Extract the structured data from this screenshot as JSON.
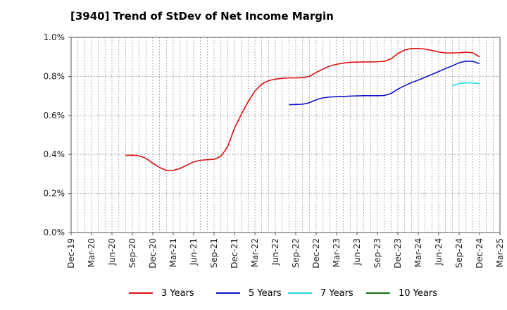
{
  "chart_data": {
    "type": "line",
    "title": "[3940]  Trend of StDev of Net Income Margin",
    "xlabel": "",
    "ylabel": "",
    "ylim": [
      0,
      1.0
    ],
    "y_ticks": [
      "0.0%",
      "0.2%",
      "0.4%",
      "0.6%",
      "0.8%",
      "1.0%"
    ],
    "x_ticks": [
      "Dec-19",
      "Mar-20",
      "Jun-20",
      "Sep-20",
      "Dec-20",
      "Mar-21",
      "Jun-21",
      "Sep-21",
      "Dec-21",
      "Mar-22",
      "Jun-22",
      "Sep-22",
      "Dec-22",
      "Mar-23",
      "Jun-23",
      "Sep-23",
      "Dec-23",
      "Mar-24",
      "Jun-24",
      "Sep-24",
      "Dec-24",
      "Mar-25"
    ],
    "x_start": "Dec-19",
    "x_end": "Mar-25",
    "grid": true,
    "legend_position": "bottom",
    "series": [
      {
        "name": "3 Years",
        "color": "#dd1111",
        "x": [
          "Aug-20",
          "Sep-20",
          "Oct-20",
          "Nov-20",
          "Dec-20",
          "Jan-21",
          "Feb-21",
          "Mar-21",
          "Apr-21",
          "May-21",
          "Jun-21",
          "Jul-21",
          "Aug-21",
          "Sep-21",
          "Oct-21",
          "Nov-21",
          "Dec-21",
          "Jan-22",
          "Feb-22",
          "Mar-22",
          "Apr-22",
          "May-22",
          "Jun-22",
          "Jul-22",
          "Aug-22",
          "Sep-22",
          "Oct-22",
          "Nov-22",
          "Dec-22",
          "Jan-23",
          "Feb-23",
          "Mar-23",
          "Apr-23",
          "May-23",
          "Jun-23",
          "Jul-23",
          "Aug-23",
          "Sep-23",
          "Oct-23",
          "Nov-23",
          "Dec-23",
          "Jan-24",
          "Feb-24",
          "Mar-24",
          "Apr-24",
          "May-24",
          "Jun-24",
          "Jul-24",
          "Aug-24",
          "Sep-24",
          "Oct-24",
          "Nov-24",
          "Dec-24"
        ],
        "values": [
          0.395,
          0.396,
          0.393,
          0.38,
          0.355,
          0.333,
          0.318,
          0.318,
          0.328,
          0.345,
          0.362,
          0.37,
          0.373,
          0.375,
          0.39,
          0.44,
          0.535,
          0.605,
          0.67,
          0.725,
          0.76,
          0.778,
          0.786,
          0.79,
          0.792,
          0.792,
          0.793,
          0.8,
          0.82,
          0.838,
          0.853,
          0.862,
          0.868,
          0.872,
          0.873,
          0.874,
          0.874,
          0.875,
          0.877,
          0.89,
          0.917,
          0.935,
          0.943,
          0.943,
          0.94,
          0.933,
          0.925,
          0.92,
          0.92,
          0.921,
          0.924,
          0.921,
          0.9
        ]
      },
      {
        "name": "5 Years",
        "color": "#1111cc",
        "x": [
          "Aug-22",
          "Sep-22",
          "Oct-22",
          "Nov-22",
          "Dec-22",
          "Jan-23",
          "Feb-23",
          "Mar-23",
          "Apr-23",
          "May-23",
          "Jun-23",
          "Jul-23",
          "Aug-23",
          "Sep-23",
          "Oct-23",
          "Nov-23",
          "Dec-23",
          "Jan-24",
          "Feb-24",
          "Mar-24",
          "Apr-24",
          "May-24",
          "Jun-24",
          "Jul-24",
          "Aug-24",
          "Sep-24",
          "Oct-24",
          "Nov-24",
          "Dec-24"
        ],
        "values": [
          0.655,
          0.656,
          0.657,
          0.665,
          0.68,
          0.69,
          0.694,
          0.696,
          0.697,
          0.699,
          0.7,
          0.701,
          0.701,
          0.701,
          0.702,
          0.712,
          0.735,
          0.752,
          0.768,
          0.781,
          0.795,
          0.81,
          0.825,
          0.84,
          0.854,
          0.87,
          0.878,
          0.877,
          0.865
        ]
      },
      {
        "name": "7 Years",
        "color": "#22dddd",
        "x": [
          "Aug-24",
          "Sep-24",
          "Oct-24",
          "Nov-24",
          "Dec-24"
        ],
        "values": [
          0.752,
          0.763,
          0.767,
          0.767,
          0.763
        ]
      },
      {
        "name": "10 Years",
        "color": "#117711",
        "x": [],
        "values": []
      }
    ]
  }
}
